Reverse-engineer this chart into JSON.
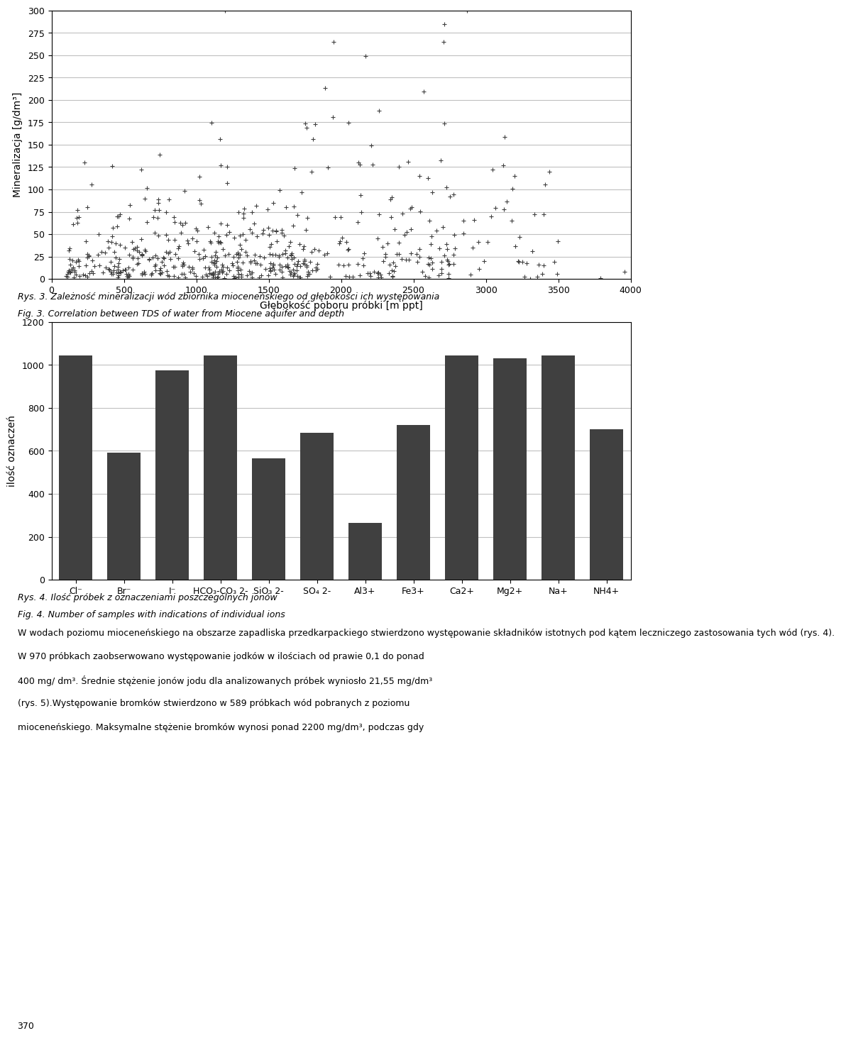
{
  "scatter_xlabel": "Głębokość poboru próbki [m ppt]",
  "scatter_ylabel": "Mineralizacja [g/dm³]",
  "scatter_xlim": [
    0,
    4000
  ],
  "scatter_ylim": [
    0,
    300
  ],
  "scatter_xticks": [
    0,
    500,
    1000,
    1500,
    2000,
    2500,
    3000,
    3500,
    4000
  ],
  "scatter_yticks": [
    0,
    25,
    50,
    75,
    100,
    125,
    150,
    175,
    200,
    225,
    250,
    275,
    300
  ],
  "scatter_color": "#404040",
  "caption1_pl": "Rys. 3. Zależność mineralizacji wód zbiornika mioceneńskiego od głębokości ich występowania",
  "caption1_en": "Fig. 3. Correlation between TDS of water from Miocene aquifer and depth",
  "bar_categories": [
    "Cl⁻",
    "Br⁻",
    "I⁻",
    "HCO₃-CO₃ 2-",
    "SiO₃ 2-",
    "SO₄ 2-",
    "Al3+",
    "Fe3+",
    "Ca2+",
    "Mg2+",
    "Na+",
    "NH4+"
  ],
  "bar_values": [
    1045,
    590,
    975,
    1045,
    565,
    685,
    265,
    720,
    1045,
    1030,
    1045,
    700
  ],
  "bar_color": "#404040",
  "bar_ylabel": "ilość oznaczeń",
  "bar_ylim": [
    0,
    1200
  ],
  "bar_yticks": [
    0,
    200,
    400,
    600,
    800,
    1000,
    1200
  ],
  "caption2_pl": "Rys. 4. Ilość próbek z oznaczeniami poszczególnych jonów",
  "caption2_en": "Fig. 4. Number of samples with indications of individual ions",
  "body_text": "W wodach poziomu mioceneńskiego na obszarze zapadliska przedkarpackiego stwierdzono występowanie składników istotnych pod kątem leczniczego zastosowania tych wód (rys. 4).\nW 970 próbkach zaobserwowano występowanie jodków w ilościach od prawie 0,1 do ponad\n400 mg/ dm³. Średnie stężenie jonów jodu dla analizowanych próbek wyniosło 21,55 mg/dm³\n(rys. 5).Występowanie bromków stwierdzono w 589 próbkach wód pobranych z poziomu\nmioceneńskiego. Maksymalne stężenie bromków wynosi ponad 2200 mg/dm³, podczas gdy",
  "page_number": "370",
  "background_color": "#ffffff",
  "figure_bg": "#ffffff",
  "scatter_marker": "+",
  "scatter_markersize": 4,
  "grid_color": "#c0c0c0"
}
